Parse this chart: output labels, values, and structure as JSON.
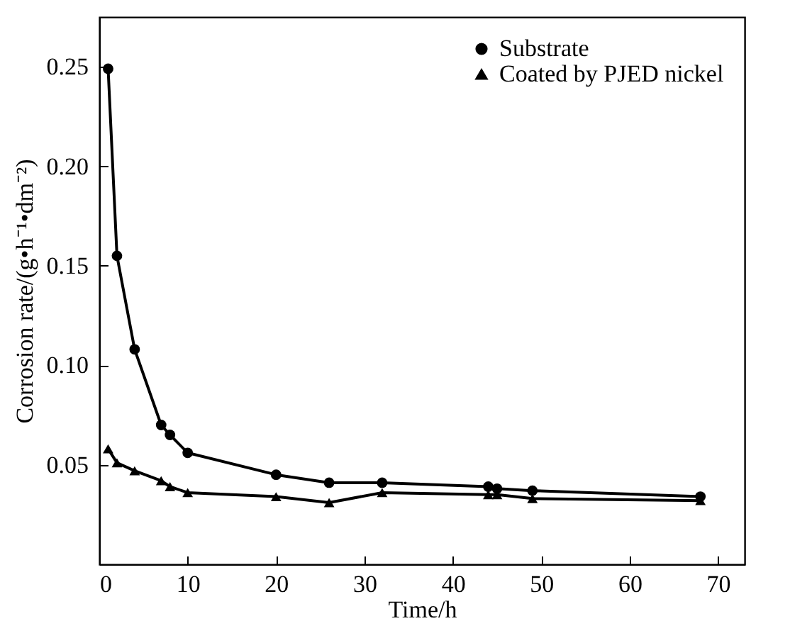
{
  "chart_data": {
    "type": "line",
    "xlabel": "Time/h",
    "ylabel": "Corrosion rate/(g•h⁻¹•dm⁻²)",
    "x": [
      1,
      2,
      4,
      7,
      8,
      10,
      20,
      26,
      32,
      44,
      45,
      49,
      68
    ],
    "series": [
      {
        "name": "Substrate",
        "color": "#000000",
        "marker": "circle",
        "values": [
          0.249,
          0.155,
          0.108,
          0.07,
          0.065,
          0.056,
          0.045,
          0.041,
          0.041,
          0.039,
          0.038,
          0.037,
          0.034
        ]
      },
      {
        "name": "Coated by PJED nickel",
        "color": "#000000",
        "marker": "triangle",
        "values": [
          0.058,
          0.051,
          0.047,
          0.042,
          0.039,
          0.036,
          0.034,
          0.031,
          0.036,
          0.035,
          0.035,
          0.033,
          0.032
        ]
      }
    ],
    "xlim": [
      0,
      73
    ],
    "ylim": [
      0,
      0.275
    ],
    "xticks": [
      0,
      10,
      20,
      30,
      40,
      50,
      60,
      70
    ],
    "yticks": [
      {
        "value": 0,
        "label": null
      },
      {
        "value": 0.05,
        "label": "0.05"
      },
      {
        "value": 0.1,
        "label": "0.10"
      },
      {
        "value": 0.15,
        "label": "0.15"
      },
      {
        "value": 0.2,
        "label": "0.20"
      },
      {
        "value": 0.25,
        "label": "0.25"
      }
    ],
    "legend": "top right",
    "grid": false,
    "line_style": "solid"
  }
}
